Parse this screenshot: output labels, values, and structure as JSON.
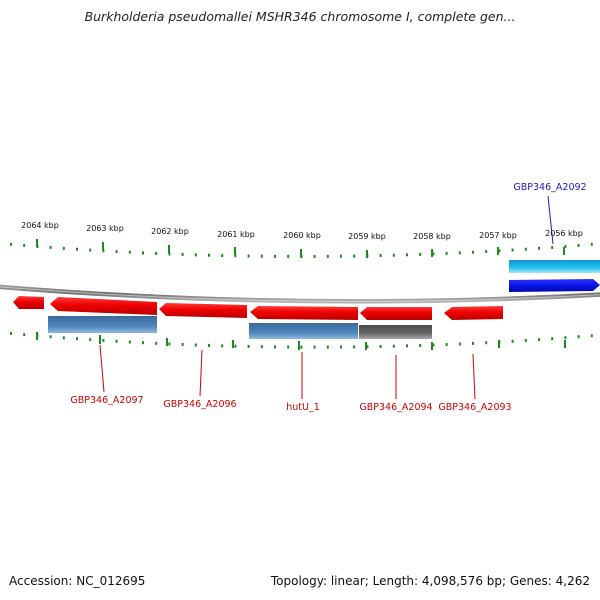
{
  "header": {
    "title": "Burkholderia pseudomallei MSHR346 chromosome I, complete gen..."
  },
  "axis": {
    "ticks": [
      "2064 kbp",
      "2063 kbp",
      "2062 kbp",
      "2061 kbp",
      "2060 kbp",
      "2059 kbp",
      "2058 kbp",
      "2057 kbp",
      "2056 kbp"
    ]
  },
  "features": {
    "labels": [
      {
        "text": "GBP346_A2092",
        "color": "#1c1cc4"
      },
      {
        "text": "GBP346_A2097",
        "color": "#d00000"
      },
      {
        "text": "GBP346_A2096",
        "color": "#d00000"
      },
      {
        "text": "hutU_1",
        "color": "#d00000"
      },
      {
        "text": "GBP346_A2094",
        "color": "#d00000"
      },
      {
        "text": "GBP346_A2093",
        "color": "#d00000"
      }
    ]
  },
  "colors": {
    "gene": "#e80000",
    "cds": "#4a7fb5",
    "pseudo": "#5c5c5c",
    "cyan": "#14b4e8",
    "blue": "#0a14e6",
    "backbone": "#8a8a8a",
    "tick": "#1f8a1f"
  },
  "footer": {
    "accession": "Accession: NC_012695",
    "summary": "Topology: linear; Length: 4,098,576 bp; Genes: 4,262"
  }
}
